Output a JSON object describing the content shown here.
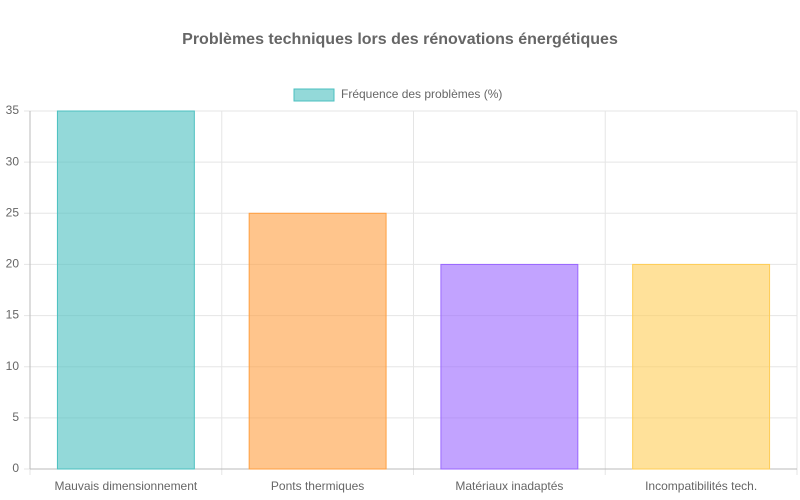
{
  "chart_data": {
    "type": "bar",
    "title": "Problèmes techniques lors des rénovations énergétiques",
    "categories": [
      "Mauvais dimensionnement",
      "Ponts thermiques",
      "Matériaux inadaptés",
      "Incompatibilités tech."
    ],
    "series": [
      {
        "name": "Fréquence des problèmes (%)",
        "values": [
          35,
          25,
          20,
          20
        ],
        "colors": [
          "#4bc0c0",
          "#ff9f40",
          "#9966ff",
          "#ffcd56"
        ]
      }
    ],
    "ylim": [
      0,
      35
    ],
    "yticks": [
      0,
      5,
      10,
      15,
      20,
      25,
      30,
      35
    ],
    "grid": true,
    "legend": "top"
  }
}
